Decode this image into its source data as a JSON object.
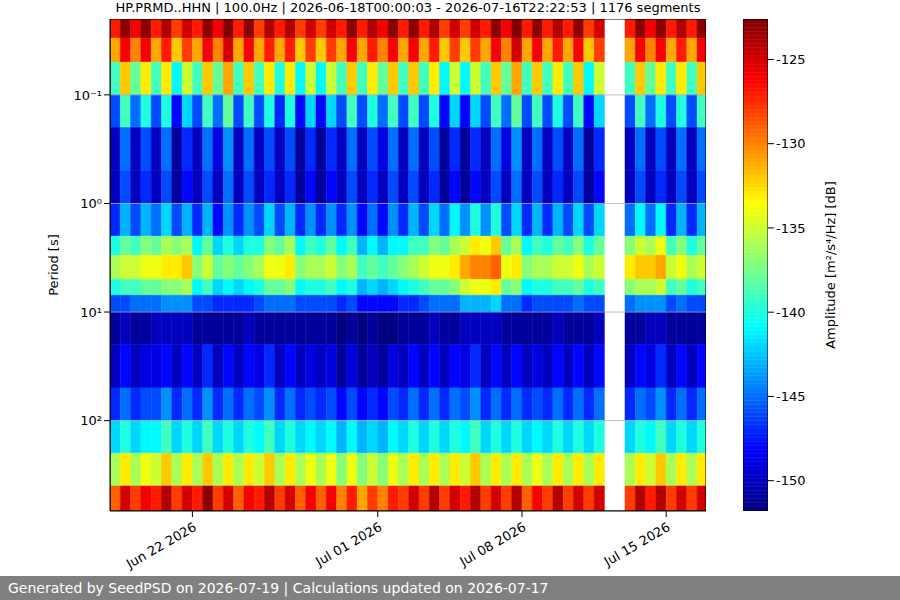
{
  "chart_data": {
    "type": "heatmap",
    "title": "HP.PRMD..HHN | 100.0Hz | 2026-06-18T00:00:03 - 2026-07-16T22:22:53 | 1176 segments",
    "ylabel": "Period [s]",
    "footer": "Generated by SeedPSD on 2026-07-19 | Calculations updated on 2026-07-17",
    "log": "y",
    "grid": "y",
    "color": "jet",
    "xlim": [
      "2026-06-18T00:00:03",
      "2026-07-16T22:22:53"
    ],
    "xticks": [
      {
        "value": "2026-06-22T00:00",
        "label": "Jun 22 2026"
      },
      {
        "value": "2026-07-01T00:00",
        "label": "Jul 01 2026"
      },
      {
        "value": "2026-07-08T00:00",
        "label": "Jul 08 2026"
      },
      {
        "value": "2026-07-15T00:00",
        "label": "Jul 15 2026"
      }
    ],
    "ylim": [
      0.02,
      680
    ],
    "yticks": [
      {
        "value": 0.1,
        "label": "10⁻¹"
      },
      {
        "value": 1,
        "label": "10⁰"
      },
      {
        "value": 10,
        "label": "10¹"
      },
      {
        "value": 100,
        "label": "10²"
      }
    ],
    "x": [
      "2026-06-18T00:00",
      "2026-06-18T12:00",
      "2026-06-19T00:00",
      "2026-06-19T12:00",
      "2026-06-20T00:00",
      "2026-06-20T12:00",
      "2026-06-21T00:00",
      "2026-06-21T12:00",
      "2026-06-22T00:00",
      "2026-06-22T12:00",
      "2026-06-23T00:00",
      "2026-06-23T12:00",
      "2026-06-24T00:00",
      "2026-06-24T12:00",
      "2026-06-25T00:00",
      "2026-06-25T12:00",
      "2026-06-26T00:00",
      "2026-06-26T12:00",
      "2026-06-27T00:00",
      "2026-06-27T12:00",
      "2026-06-28T00:00",
      "2026-06-28T12:00",
      "2026-06-29T00:00",
      "2026-06-29T12:00",
      "2026-06-30T00:00",
      "2026-06-30T12:00",
      "2026-07-01T00:00",
      "2026-07-01T12:00",
      "2026-07-02T00:00",
      "2026-07-02T12:00",
      "2026-07-03T00:00",
      "2026-07-03T12:00",
      "2026-07-04T00:00",
      "2026-07-04T12:00",
      "2026-07-05T00:00",
      "2026-07-05T12:00",
      "2026-07-06T00:00",
      "2026-07-06T12:00",
      "2026-07-07T00:00",
      "2026-07-07T12:00",
      "2026-07-08T00:00",
      "2026-07-08T12:00",
      "2026-07-09T00:00",
      "2026-07-09T12:00",
      "2026-07-10T00:00",
      "2026-07-10T12:00",
      "2026-07-11T00:00",
      "2026-07-11T12:00",
      "2026-07-12T00:00",
      "2026-07-12T12:00",
      "2026-07-13T00:00",
      "2026-07-13T12:00",
      "2026-07-14T00:00",
      "2026-07-14T12:00",
      "2026-07-15T00:00",
      "2026-07-15T12:00",
      "2026-07-16T00:00",
      "2026-07-16T12:00"
    ],
    "period_edges": [
      0.02,
      0.03,
      0.05,
      0.1,
      0.2,
      0.5,
      1,
      2,
      3,
      5,
      7,
      10,
      20,
      50,
      100,
      200,
      400,
      680
    ],
    "values": [
      [
        -127,
        -123,
        -126,
        -123,
        -127,
        -124,
        -128,
        -125,
        -127,
        -123,
        -126,
        -122,
        -127,
        -123,
        -128,
        -124,
        -127,
        -124,
        -128,
        -125,
        -128,
        -125,
        -127,
        -123,
        -127,
        -124,
        -126,
        -123,
        -127,
        -123,
        -127,
        -124,
        -128,
        -125,
        -128,
        -125,
        -127,
        -123,
        -126,
        -122,
        -127,
        -123,
        -127,
        -124,
        -127,
        -123,
        -128,
        -125,
        null,
        null,
        -127,
        -123,
        -126,
        -123,
        -127,
        -124,
        -127,
        -123
      ],
      [
        -131,
        -126,
        -130,
        -126,
        -131,
        -127,
        -132,
        -128,
        -131,
        -126,
        -130,
        -125,
        -131,
        -126,
        -131,
        -127,
        -131,
        -127,
        -132,
        -128,
        -132,
        -128,
        -131,
        -126,
        -131,
        -127,
        -130,
        -126,
        -131,
        -126,
        -131,
        -127,
        -132,
        -128,
        -132,
        -128,
        -131,
        -126,
        -130,
        -125,
        -131,
        -126,
        -131,
        -127,
        -131,
        -126,
        -132,
        -128,
        null,
        null,
        -131,
        -126,
        -130,
        -126,
        -131,
        -127,
        -131,
        -126
      ],
      [
        -139,
        -132,
        -138,
        -133,
        -139,
        -133,
        -141,
        -135,
        -139,
        -132,
        -138,
        -131,
        -139,
        -132,
        -139,
        -133,
        -140,
        -133,
        -141,
        -135,
        -141,
        -135,
        -139,
        -132,
        -139,
        -133,
        -138,
        -132,
        -139,
        -132,
        -139,
        -133,
        -141,
        -135,
        -141,
        -135,
        -139,
        -132,
        -138,
        -131,
        -139,
        -132,
        -139,
        -133,
        -139,
        -132,
        -141,
        -135,
        null,
        null,
        -139,
        -132,
        -138,
        -133,
        -139,
        -133,
        -139,
        -132
      ],
      [
        -146,
        -139,
        -145,
        -140,
        -146,
        -140,
        -148,
        -142,
        -146,
        -139,
        -145,
        -138,
        -146,
        -139,
        -146,
        -140,
        -147,
        -140,
        -148,
        -142,
        -148,
        -142,
        -146,
        -139,
        -146,
        -140,
        -145,
        -139,
        -146,
        -139,
        -146,
        -140,
        -148,
        -142,
        -148,
        -142,
        -146,
        -139,
        -145,
        -138,
        -146,
        -139,
        -146,
        -140,
        -146,
        -139,
        -148,
        -142,
        null,
        null,
        -146,
        -139,
        -145,
        -140,
        -146,
        -140,
        -146,
        -139
      ],
      [
        -150,
        -145,
        -150,
        -146,
        -150,
        -145,
        -151,
        -147,
        -150,
        -145,
        -149,
        -144,
        -150,
        -145,
        -150,
        -146,
        -150,
        -146,
        -151,
        -147,
        -151,
        -147,
        -150,
        -145,
        -150,
        -146,
        -149,
        -145,
        -150,
        -145,
        -150,
        -146,
        -151,
        -147,
        -151,
        -147,
        -150,
        -145,
        -149,
        -144,
        -150,
        -145,
        -150,
        -146,
        -150,
        -145,
        -151,
        -147,
        null,
        null,
        -150,
        -145,
        -150,
        -146,
        -150,
        -145,
        -150,
        -145
      ],
      [
        -150,
        -146,
        -150,
        -147,
        -150,
        -146,
        -151,
        -148,
        -150,
        -146,
        -150,
        -145,
        -150,
        -146,
        -150,
        -147,
        -150,
        -147,
        -151,
        -148,
        -151,
        -148,
        -150,
        -146,
        -150,
        -147,
        -150,
        -146,
        -150,
        -146,
        -150,
        -147,
        -151,
        -148,
        -151,
        -148,
        -150,
        -146,
        -150,
        -145,
        -150,
        -146,
        -150,
        -147,
        -150,
        -146,
        -151,
        -148,
        null,
        null,
        -150,
        -146,
        -150,
        -147,
        -150,
        -146,
        -150,
        -146
      ],
      [
        -147,
        -143,
        -146,
        -143,
        -145,
        -142,
        -146,
        -143,
        -147,
        -143,
        -148,
        -144,
        -147,
        -144,
        -146,
        -142,
        -146,
        -143,
        -147,
        -144,
        -147,
        -144,
        -147,
        -144,
        -148,
        -145,
        -148,
        -144,
        -147,
        -143,
        -146,
        -142,
        -145,
        -141,
        -144,
        -140,
        -144,
        -140,
        -146,
        -142,
        -147,
        -143,
        -147,
        -143,
        -146,
        -142,
        -146,
        -142,
        null,
        null,
        -145,
        -141,
        -145,
        -141,
        -147,
        -143,
        -147,
        -143
      ],
      [
        -140,
        -138,
        -139,
        -137,
        -138,
        -136,
        -137,
        -136,
        -141,
        -138,
        -142,
        -140,
        -142,
        -140,
        -140,
        -137,
        -138,
        -136,
        -141,
        -139,
        -140,
        -138,
        -141,
        -139,
        -143,
        -141,
        -143,
        -141,
        -141,
        -139,
        -139,
        -137,
        -138,
        -136,
        -135,
        -133,
        -134,
        -132,
        -138,
        -136,
        -141,
        -139,
        -140,
        -138,
        -139,
        -137,
        -140,
        -138,
        null,
        null,
        -137,
        -135,
        -136,
        -134,
        -139,
        -137,
        -140,
        -138
      ],
      [
        -136,
        -135,
        -135,
        -134,
        -134,
        -133,
        -133,
        -132,
        -137,
        -135,
        -138,
        -137,
        -138,
        -137,
        -136,
        -134,
        -134,
        -133,
        -137,
        -136,
        -136,
        -135,
        -137,
        -136,
        -139,
        -138,
        -139,
        -138,
        -137,
        -136,
        -135,
        -134,
        -134,
        -133,
        -131,
        -130,
        -130,
        -129,
        -134,
        -133,
        -137,
        -136,
        -136,
        -135,
        -135,
        -134,
        -136,
        -135,
        null,
        null,
        -133,
        -132,
        -132,
        -131,
        -135,
        -134,
        -136,
        -135
      ],
      [
        -140,
        -139,
        -139,
        -138,
        -138,
        -137,
        -137,
        -136,
        -141,
        -139,
        -142,
        -141,
        -142,
        -141,
        -140,
        -138,
        -138,
        -137,
        -141,
        -140,
        -140,
        -139,
        -141,
        -140,
        -143,
        -142,
        -143,
        -142,
        -141,
        -140,
        -139,
        -138,
        -138,
        -137,
        -135,
        -134,
        -134,
        -133,
        -138,
        -137,
        -141,
        -140,
        -140,
        -139,
        -139,
        -138,
        -140,
        -139,
        null,
        null,
        -137,
        -136,
        -136,
        -135,
        -139,
        -138,
        -140,
        -139
      ],
      [
        -146,
        -146,
        -145,
        -145,
        -145,
        -144,
        -144,
        -144,
        -146,
        -146,
        -147,
        -147,
        -147,
        -147,
        -146,
        -145,
        -145,
        -145,
        -146,
        -146,
        -146,
        -146,
        -147,
        -146,
        -148,
        -148,
        -148,
        -148,
        -147,
        -147,
        -146,
        -145,
        -145,
        -145,
        -143,
        -143,
        -143,
        -142,
        -145,
        -145,
        -147,
        -146,
        -146,
        -146,
        -146,
        -145,
        -146,
        -146,
        null,
        null,
        -145,
        -144,
        -144,
        -144,
        -146,
        -145,
        -146,
        -146
      ],
      [
        -151,
        -150,
        -151,
        -151,
        -150,
        -150,
        -150,
        -150,
        -151,
        -151,
        -151,
        -151,
        -151,
        -150,
        -151,
        -151,
        -151,
        -151,
        -151,
        -151,
        -151,
        -151,
        -152,
        -151,
        -152,
        -151,
        -152,
        -152,
        -151,
        -151,
        -151,
        -150,
        -151,
        -151,
        -150,
        -150,
        -150,
        -150,
        -151,
        -151,
        -151,
        -151,
        -151,
        -150,
        -151,
        -151,
        -151,
        -150,
        null,
        null,
        -151,
        -151,
        -150,
        -150,
        -151,
        -151,
        -151,
        -151
      ],
      [
        -150,
        -148,
        -150,
        -149,
        -149,
        -148,
        -150,
        -148,
        -150,
        -147,
        -150,
        -148,
        -150,
        -148,
        -149,
        -147,
        -150,
        -148,
        -150,
        -149,
        -150,
        -149,
        -151,
        -149,
        -151,
        -150,
        -151,
        -149,
        -150,
        -148,
        -150,
        -148,
        -150,
        -148,
        -149,
        -147,
        -150,
        -148,
        -150,
        -148,
        -150,
        -149,
        -150,
        -148,
        -150,
        -148,
        -150,
        -148,
        null,
        null,
        -150,
        -148,
        -149,
        -147,
        -150,
        -148,
        -150,
        -148
      ],
      [
        -147,
        -145,
        -147,
        -146,
        -146,
        -144,
        -147,
        -145,
        -147,
        -144,
        -147,
        -145,
        -147,
        -145,
        -146,
        -144,
        -147,
        -145,
        -147,
        -146,
        -147,
        -146,
        -148,
        -146,
        -148,
        -147,
        -148,
        -146,
        -147,
        -145,
        -147,
        -145,
        -147,
        -145,
        -146,
        -144,
        -147,
        -145,
        -147,
        -145,
        -147,
        -146,
        -147,
        -145,
        -147,
        -145,
        -147,
        -145,
        null,
        null,
        -147,
        -145,
        -146,
        -144,
        -147,
        -145,
        -147,
        -145
      ],
      [
        -142,
        -140,
        -142,
        -141,
        -141,
        -139,
        -142,
        -140,
        -142,
        -139,
        -142,
        -140,
        -142,
        -140,
        -141,
        -139,
        -142,
        -140,
        -142,
        -141,
        -142,
        -141,
        -143,
        -141,
        -143,
        -142,
        -143,
        -141,
        -142,
        -140,
        -142,
        -140,
        -142,
        -140,
        -141,
        -139,
        -142,
        -140,
        -142,
        -140,
        -142,
        -141,
        -142,
        -140,
        -142,
        -140,
        -142,
        -140,
        null,
        null,
        -142,
        -140,
        -141,
        -139,
        -142,
        -140,
        -142,
        -140
      ],
      [
        -136,
        -133,
        -136,
        -134,
        -135,
        -132,
        -136,
        -133,
        -136,
        -132,
        -136,
        -133,
        -136,
        -133,
        -135,
        -132,
        -136,
        -133,
        -136,
        -134,
        -136,
        -134,
        -137,
        -134,
        -137,
        -135,
        -137,
        -134,
        -136,
        -133,
        -136,
        -133,
        -136,
        -133,
        -135,
        -132,
        -136,
        -133,
        -136,
        -133,
        -136,
        -134,
        -136,
        -133,
        -136,
        -133,
        -136,
        -133,
        null,
        null,
        -136,
        -133,
        -135,
        -132,
        -136,
        -133,
        -136,
        -133
      ],
      [
        -129,
        -125,
        -128,
        -126,
        -127,
        -124,
        -128,
        -125,
        -127,
        -123,
        -128,
        -125,
        -129,
        -126,
        -127,
        -124,
        -128,
        -125,
        -129,
        -126,
        -129,
        -126,
        -130,
        -127,
        -131,
        -128,
        -130,
        -127,
        -128,
        -125,
        -128,
        -124,
        -128,
        -125,
        -127,
        -124,
        -128,
        -125,
        -128,
        -124,
        -129,
        -126,
        -128,
        -124,
        -128,
        -125,
        -128,
        -125,
        null,
        null,
        -128,
        -124,
        -127,
        -124,
        -128,
        -125,
        -128,
        -125
      ]
    ],
    "colorbar_range": [
      -151.8,
      -122.6
    ],
    "colorbar_ticks": [
      -125,
      -130,
      -135,
      -140,
      -145,
      -150
    ],
    "colorbar_label": "Amplitude [m²/s⁴/Hz] [dB]"
  }
}
